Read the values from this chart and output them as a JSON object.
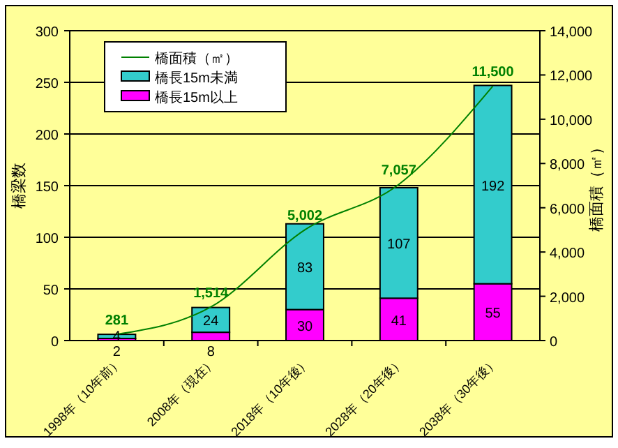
{
  "chart_data": {
    "type": "bar",
    "stacked": true,
    "ylabel": "橋梁数",
    "y2label": "橋面積（㎡）",
    "categories": [
      "1998年（10年前）",
      "2008年（現在）",
      "2018年（10年後）",
      "2028年（20年後）",
      "2038年（30年後）"
    ],
    "series": [
      {
        "name": "橋長15m以上",
        "color": "#ff00ff",
        "values": [
          2,
          8,
          30,
          41,
          55
        ]
      },
      {
        "name": "橋長15m未満",
        "color": "#33cccc",
        "values": [
          4,
          24,
          83,
          107,
          192
        ]
      },
      {
        "name": "橋面積（㎡）",
        "type": "line",
        "axis": "y2",
        "color": "#008000",
        "values": [
          281,
          1514,
          5002,
          7057,
          11500
        ],
        "value_labels": [
          "281",
          "1,514",
          "5,002",
          "7,057",
          "11,500"
        ]
      }
    ],
    "ylim": [
      0,
      300
    ],
    "yticks": [
      0,
      50,
      100,
      150,
      200,
      250,
      300
    ],
    "y2lim": [
      0,
      14000
    ],
    "y2ticks": [
      {
        "value": 0,
        "label": "0"
      },
      {
        "value": 2000,
        "label": "2,000"
      },
      {
        "value": 4000,
        "label": "4,000"
      },
      {
        "value": 6000,
        "label": "6,000"
      },
      {
        "value": 8000,
        "label": "8,000"
      },
      {
        "value": 10000,
        "label": "10,000"
      },
      {
        "value": 12000,
        "label": "12,000"
      },
      {
        "value": 14000,
        "label": "14,000"
      }
    ],
    "grid": "y",
    "legend": "top left",
    "data_labels": true,
    "marker": "none"
  }
}
